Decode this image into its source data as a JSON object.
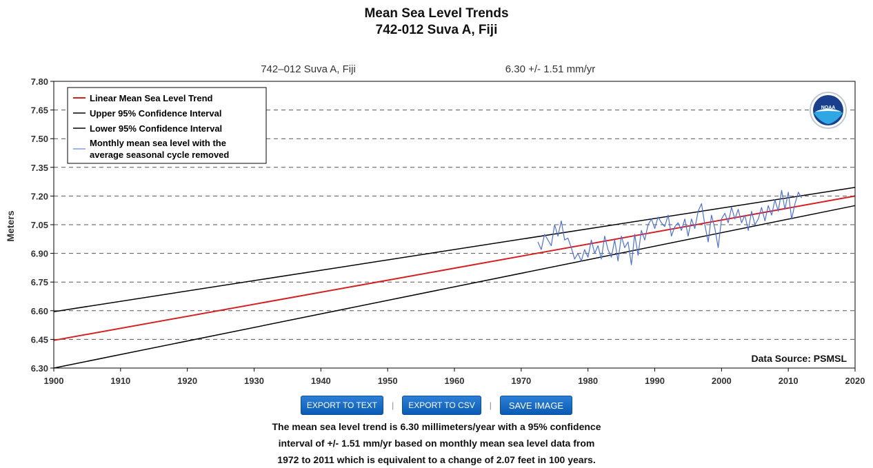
{
  "page": {
    "title_line1": "Mean Sea Level Trends",
    "title_line2": "742-012 Suva A, Fiji"
  },
  "chart_data": {
    "type": "line",
    "subtitle_station": "742–012 Suva A, Fiji",
    "subtitle_rate": "6.30 +/-  1.51 mm/yr",
    "ylabel": "Meters",
    "xlabel": "",
    "xlim": [
      1900,
      2020
    ],
    "ylim": [
      6.3,
      7.8
    ],
    "x_ticks": [
      "1900",
      "1910",
      "1920",
      "1930",
      "1940",
      "1950",
      "1960",
      "1970",
      "1980",
      "1990",
      "2000",
      "2010",
      "2020"
    ],
    "y_ticks": [
      "6.30",
      "6.45",
      "6.60",
      "6.75",
      "6.90",
      "7.05",
      "7.20",
      "7.35",
      "7.50",
      "7.65",
      "7.80"
    ],
    "grid": "horizontal dashed",
    "legend_placement": "top-left",
    "source": "Data Source: PSMSL",
    "series": [
      {
        "name": "Linear Mean Sea Level Trend",
        "color": "#d42020",
        "x": [
          1900,
          2020
        ],
        "y": [
          6.445,
          7.2
        ]
      },
      {
        "name": "Upper 95% Confidence Interval",
        "color": "#000000",
        "x": [
          1900,
          2020
        ],
        "y": [
          6.595,
          7.245
        ]
      },
      {
        "name": "Lower 95% Confidence Interval",
        "color": "#000000",
        "x": [
          1900,
          2020
        ],
        "y": [
          6.3,
          7.15
        ]
      },
      {
        "name": "Monthly mean sea level with the average seasonal cycle removed",
        "color": "#4a6fe0",
        "x": [
          1972.5,
          1973,
          1973.5,
          1974,
          1974.5,
          1975,
          1975.5,
          1976,
          1976.5,
          1977,
          1977.5,
          1978,
          1978.5,
          1979,
          1979.5,
          1980,
          1980.5,
          1981,
          1981.5,
          1982,
          1982.5,
          1983,
          1983.5,
          1984,
          1984.5,
          1985,
          1985.5,
          1986,
          1986.5,
          1987,
          1987.5,
          1988,
          1988.5,
          1989,
          1989.5,
          1990,
          1990.5,
          1991,
          1991.5,
          1992,
          1992.5,
          1993,
          1993.5,
          1994,
          1994.5,
          1995,
          1995.5,
          1996,
          1996.5,
          1997,
          1997.5,
          1998,
          1998.5,
          1999,
          1999.5,
          2000,
          2000.5,
          2001,
          2001.5,
          2002,
          2002.5,
          2003,
          2003.5,
          2004,
          2004.5,
          2005,
          2005.5,
          2006,
          2006.5,
          2007,
          2007.5,
          2008,
          2008.5,
          2009,
          2009.5,
          2010,
          2010.5,
          2011,
          2011.5,
          2012
        ],
        "y": [
          6.96,
          6.92,
          7.0,
          6.97,
          6.94,
          7.05,
          6.99,
          7.07,
          6.97,
          6.98,
          6.93,
          6.87,
          6.9,
          6.86,
          6.92,
          6.88,
          6.97,
          6.9,
          6.94,
          6.87,
          6.99,
          6.92,
          6.88,
          6.97,
          6.86,
          6.99,
          6.93,
          6.96,
          6.84,
          7.0,
          6.89,
          7.02,
          6.97,
          7.05,
          7.08,
          7.03,
          7.09,
          7.06,
          7.04,
          7.1,
          6.99,
          7.04,
          7.06,
          7.02,
          7.08,
          6.99,
          7.08,
          7.03,
          7.12,
          7.16,
          7.05,
          6.96,
          7.1,
          7.03,
          6.93,
          7.08,
          7.11,
          7.06,
          7.14,
          7.08,
          7.13,
          7.06,
          7.1,
          7.02,
          7.12,
          7.05,
          7.08,
          7.14,
          7.07,
          7.15,
          7.1,
          7.18,
          7.12,
          7.23,
          7.13,
          7.22,
          7.08,
          7.16,
          7.22,
          7.19
        ]
      }
    ]
  },
  "buttons": {
    "export_text": "EXPORT TO TEXT",
    "export_csv": "EXPORT TO CSV",
    "save_image": "SAVE IMAGE",
    "separator": "|"
  },
  "summary": {
    "line1": "The mean sea level trend is 6.30 millimeters/year with a 95% confidence",
    "line2": "interval of +/- 1.51 mm/yr based on monthly mean sea level data from",
    "line3": "1972 to 2011 which is equivalent to a change of 2.07 feet in 100 years."
  },
  "logo": {
    "text": "NOAA"
  }
}
